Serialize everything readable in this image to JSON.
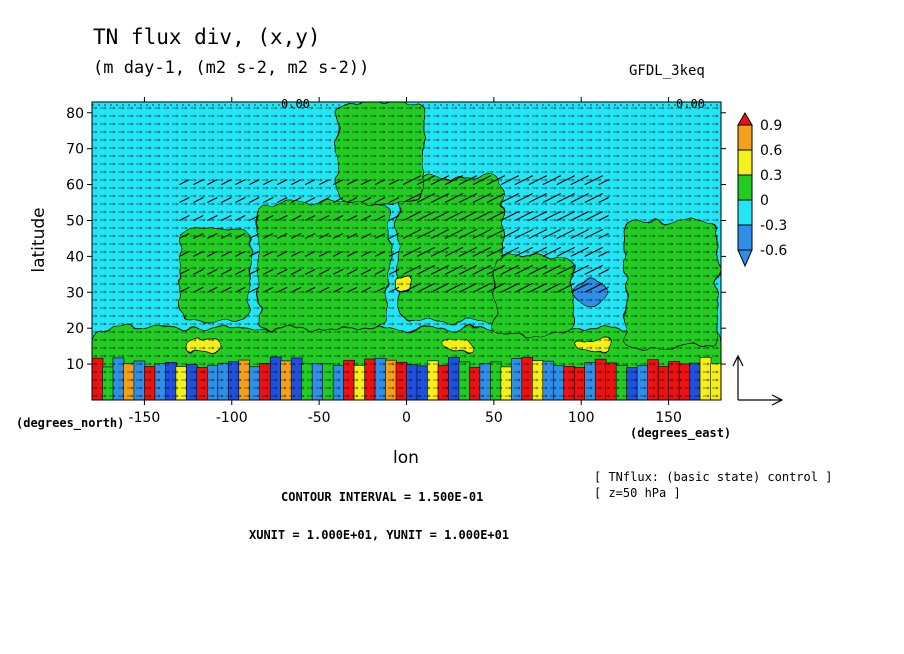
{
  "header": {
    "title": "TN flux div, (x,y)",
    "subtitle": "(m day-1, (m2 s-2, m2 s-2))",
    "model": "GFDL_3keq"
  },
  "footer": {
    "source_line1": "[ TNflux: (basic state) control ]",
    "source_line2": "[ z=50 hPa ]",
    "contour_interval": "CONTOUR INTERVAL = 1.500E-01",
    "units": "XUNIT = 1.000E+01, YUNIT = 1.000E+01"
  },
  "colors": {
    "red": "#ee1111",
    "orange": "#f5a019",
    "yellow": "#f5f019",
    "green": "#22cc22",
    "cyan": "#22e6f5",
    "blue": "#2f8fe8",
    "deepblue": "#2050e0"
  },
  "chart_data": {
    "type": "heatmap",
    "xlabel": "lon",
    "ylabel": "latitude",
    "x_unit_label": "(degrees_east)",
    "y_unit_label": "(degrees_north)",
    "xlim": [
      -180,
      180
    ],
    "ylim": [
      0,
      83
    ],
    "xticks": [
      -150,
      -100,
      -50,
      0,
      50,
      100,
      150
    ],
    "yticks": [
      10,
      20,
      30,
      40,
      50,
      60,
      70,
      80
    ],
    "colorbar": {
      "levels": [
        0.9,
        0.6,
        0.3,
        0,
        -0.3,
        -0.6
      ],
      "labels": [
        "0.9",
        "0.6",
        "0.3",
        "0",
        "-0.3",
        "-0.6"
      ]
    },
    "contour_labels": [
      "0.00",
      "0.00"
    ],
    "regions": [
      {
        "value": "green",
        "lon": [
          -180,
          180
        ],
        "lat": [
          0,
          20
        ]
      },
      {
        "value": "green",
        "lon": [
          -85,
          -10
        ],
        "lat": [
          20,
          55
        ]
      },
      {
        "value": "green",
        "lon": [
          -130,
          -90
        ],
        "lat": [
          22,
          48
        ]
      },
      {
        "value": "green",
        "lon": [
          -5,
          55
        ],
        "lat": [
          22,
          62
        ]
      },
      {
        "value": "green",
        "lon": [
          50,
          95
        ],
        "lat": [
          18,
          40
        ]
      },
      {
        "value": "green",
        "lon": [
          125,
          178
        ],
        "lat": [
          15,
          50
        ]
      },
      {
        "value": "green",
        "lon": [
          -40,
          10
        ],
        "lat": [
          55,
          83
        ]
      },
      {
        "value": "yellow",
        "lon": [
          -128,
          -105
        ],
        "lat": [
          13,
          17
        ]
      },
      {
        "value": "yellow",
        "lon": [
          20,
          40
        ],
        "lat": [
          13,
          17
        ]
      },
      {
        "value": "yellow",
        "lon": [
          97,
          118
        ],
        "lat": [
          13,
          17
        ]
      },
      {
        "value": "yellow",
        "lon": [
          -7,
          2
        ],
        "lat": [
          31,
          34
        ]
      },
      {
        "value": "blue",
        "lon": [
          95,
          115
        ],
        "lat": [
          27,
          33
        ]
      }
    ]
  }
}
